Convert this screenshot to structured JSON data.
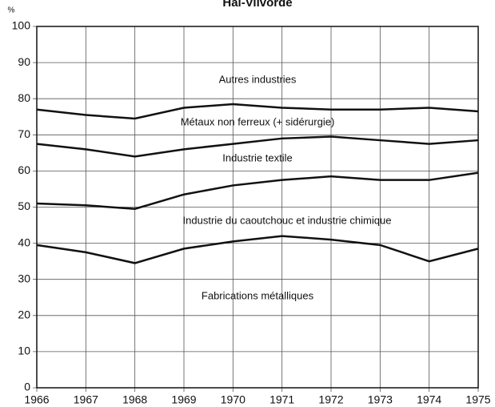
{
  "chart_data": {
    "type": "stacked_area",
    "title": "Hal-Vilvorde",
    "y_label": "%",
    "x": [
      1966,
      1967,
      1968,
      1969,
      1970,
      1971,
      1972,
      1973,
      1974,
      1975
    ],
    "xlim": [
      1966,
      1975
    ],
    "xticks": [
      1966,
      1967,
      1968,
      1969,
      1970,
      1971,
      1972,
      1973,
      1974,
      1975
    ],
    "ylim": [
      0,
      100
    ],
    "yticks": [
      0,
      10,
      20,
      30,
      40,
      50,
      60,
      70,
      80,
      90,
      100
    ],
    "grid": true,
    "series": [
      {
        "name": "Fabrications métalliques",
        "color": "#111111",
        "values": [
          39.5,
          37.5,
          34.5,
          38.5,
          40.5,
          42,
          41,
          39.5,
          35,
          38.5
        ]
      },
      {
        "name": "Industrie du caoutchouc et industrie chimique",
        "color": "#111111",
        "values": [
          11.5,
          13,
          15,
          15,
          15.5,
          15.5,
          17.5,
          18,
          22.5,
          21
        ]
      },
      {
        "name": "Industrie textile",
        "color": "#111111",
        "values": [
          16.5,
          15.5,
          14.5,
          12.5,
          11.5,
          11.5,
          11,
          11,
          10,
          9
        ]
      },
      {
        "name": "Métaux non ferreux (+ sidérurgie)",
        "color": "#111111",
        "values": [
          9.5,
          9.5,
          10.5,
          11.5,
          11,
          8.5,
          7.5,
          8.5,
          10,
          8
        ]
      },
      {
        "name": "Autres industries",
        "color": "#111111",
        "values": [
          23,
          24.5,
          25.5,
          22.5,
          21.5,
          22.5,
          23,
          23,
          22.5,
          23.5
        ]
      }
    ]
  }
}
